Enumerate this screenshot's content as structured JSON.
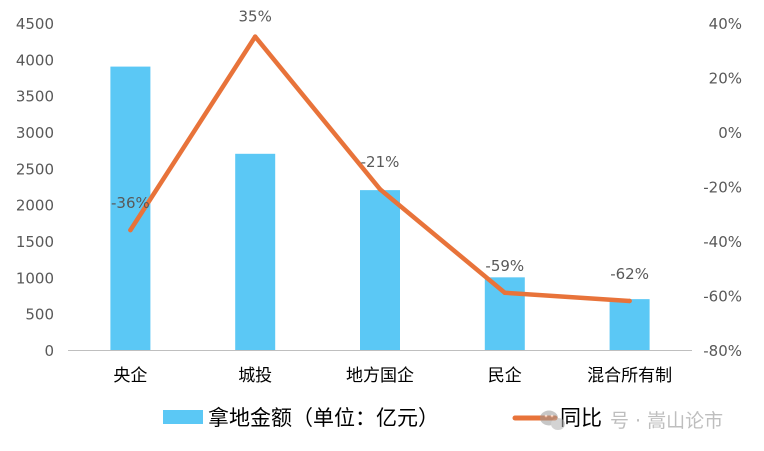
{
  "chart_data": {
    "type": "bar+line",
    "categories": [
      "央企",
      "城投",
      "地方国企",
      "民企",
      "混合所有制"
    ],
    "series": [
      {
        "name": "拿地金额（单位：亿元）",
        "type": "bar",
        "axis": "left",
        "color": "#5bc8f5",
        "values": [
          3900,
          2700,
          2200,
          1000,
          700
        ]
      },
      {
        "name": "同比",
        "type": "line",
        "axis": "right",
        "color": "#e8733a",
        "values": [
          -36,
          35,
          -21,
          -59,
          -62
        ],
        "labels": [
          "-36%",
          "35%",
          "-21%",
          "-59%",
          "-62%"
        ]
      }
    ],
    "y_left": {
      "ylim": [
        0,
        4500
      ],
      "ticks": [
        "0",
        "500",
        "1000",
        "1500",
        "2000",
        "2500",
        "3000",
        "3500",
        "4000",
        "4500"
      ]
    },
    "y_right": {
      "ylim": [
        -80,
        40
      ],
      "ticks": [
        "-80%",
        "-60%",
        "-40%",
        "-20%",
        "0%",
        "20%",
        "40%"
      ]
    },
    "grid": false,
    "legend_position": "bottom",
    "colors": {
      "axis": "#bfbfbf",
      "tick_text": "#595959",
      "category_text": "#000000"
    }
  },
  "watermark": {
    "text": "号 · 嵩山论市",
    "icon": "wechat-icon"
  }
}
